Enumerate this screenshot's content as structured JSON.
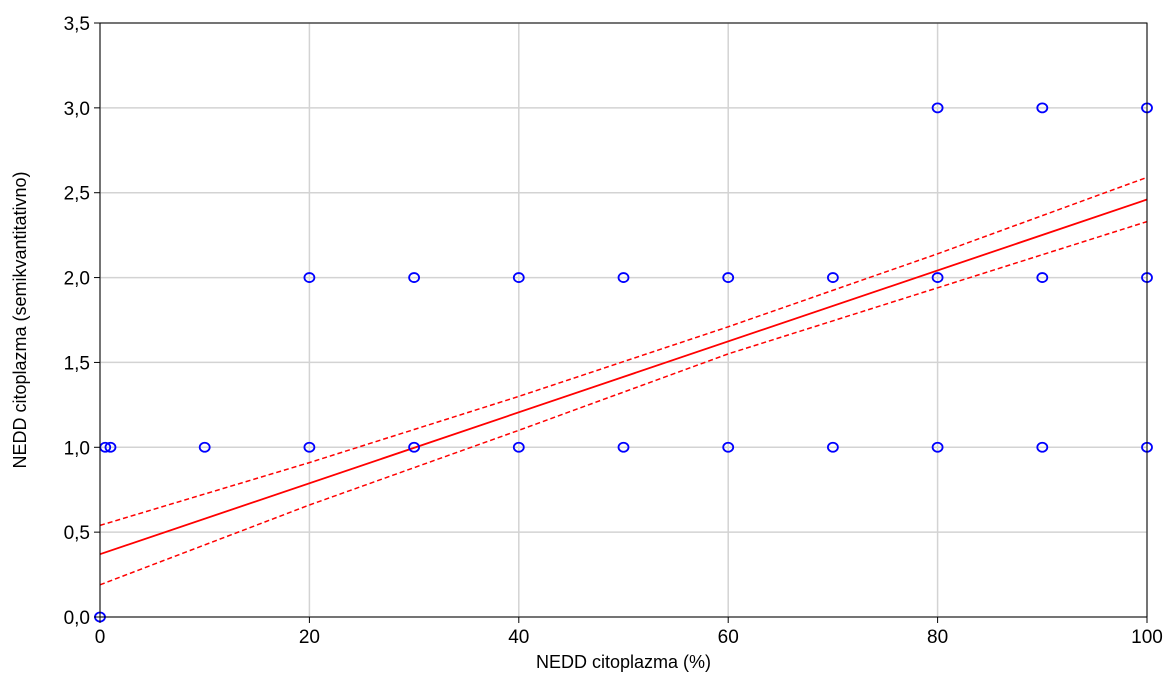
{
  "chart_data": {
    "type": "scatter",
    "title": "",
    "xlabel": "NEDD citoplazma (%)",
    "ylabel": "NEDD citoplazma (semikvantitativno)",
    "xlim": [
      0,
      100
    ],
    "ylim": [
      0,
      3.5
    ],
    "grid": true,
    "x_ticks": [
      0,
      20,
      40,
      60,
      80,
      100
    ],
    "x_tick_labels": [
      "0",
      "20",
      "40",
      "60",
      "80",
      "100"
    ],
    "y_ticks": [
      0,
      0.5,
      1,
      1.5,
      2,
      2.5,
      3,
      3.5
    ],
    "y_tick_labels": [
      "0,0",
      "0,5",
      "1,0",
      "1,5",
      "2,0",
      "2,5",
      "3,0",
      "3,5"
    ],
    "points": [
      {
        "x": 0,
        "y": 0
      },
      {
        "x": 0.5,
        "y": 1
      },
      {
        "x": 1,
        "y": 1
      },
      {
        "x": 10,
        "y": 1
      },
      {
        "x": 20,
        "y": 1
      },
      {
        "x": 30,
        "y": 1
      },
      {
        "x": 40,
        "y": 1
      },
      {
        "x": 50,
        "y": 1
      },
      {
        "x": 60,
        "y": 1
      },
      {
        "x": 70,
        "y": 1
      },
      {
        "x": 80,
        "y": 1
      },
      {
        "x": 90,
        "y": 1
      },
      {
        "x": 100,
        "y": 1
      },
      {
        "x": 20,
        "y": 2
      },
      {
        "x": 30,
        "y": 2
      },
      {
        "x": 40,
        "y": 2
      },
      {
        "x": 50,
        "y": 2
      },
      {
        "x": 60,
        "y": 2
      },
      {
        "x": 70,
        "y": 2
      },
      {
        "x": 80,
        "y": 2
      },
      {
        "x": 90,
        "y": 2
      },
      {
        "x": 100,
        "y": 2
      },
      {
        "x": 80,
        "y": 3
      },
      {
        "x": 90,
        "y": 3
      },
      {
        "x": 100,
        "y": 3
      }
    ],
    "regression_line": {
      "x": [
        0,
        100
      ],
      "y": [
        0.37,
        2.46
      ]
    },
    "confidence_bands": [
      {
        "x": [
          0,
          20,
          40,
          60,
          80,
          100
        ],
        "y": [
          0.54,
          0.91,
          1.3,
          1.71,
          2.14,
          2.59
        ]
      },
      {
        "x": [
          0,
          20,
          40,
          60,
          80,
          100
        ],
        "y": [
          0.19,
          0.66,
          1.1,
          1.55,
          1.94,
          2.33
        ]
      }
    ],
    "colors": {
      "points": "#0000ff",
      "regression": "#ff0000",
      "grid": "#d3d3d3",
      "axes": "#000000"
    }
  }
}
